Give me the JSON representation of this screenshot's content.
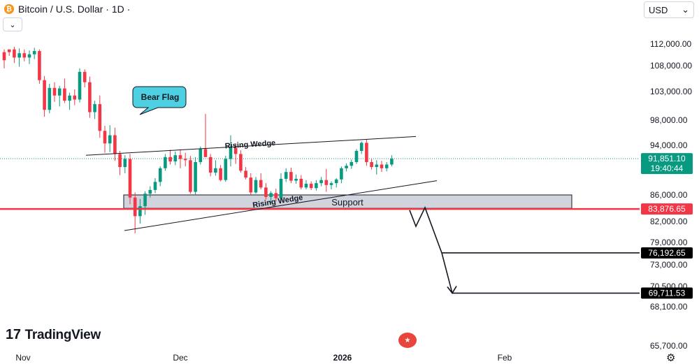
{
  "header": {
    "title": "Bitcoin / U.S. Dollar · 1D ·",
    "coin_symbol": "₿",
    "collapse_glyph": "⌄"
  },
  "currency_select": {
    "value": "USD",
    "chevron": "⌄"
  },
  "branding": {
    "logo_mark": "17",
    "logo_text": "TradingView"
  },
  "colors": {
    "up": "#089981",
    "down": "#f23645",
    "support_line": "#f23645",
    "support_zone": "#d1d4dc",
    "callout": "#4dd0e1",
    "live_badge": "#089981",
    "target_badge": "#000000"
  },
  "chart_data": {
    "type": "candlestick",
    "y_axis": {
      "ticks": [
        "112,000.00",
        "108,000.00",
        "103,000.00",
        "98,000.00",
        "94,000.00",
        "86,000.00",
        "82,000.00",
        "79,000.00",
        "73,000.00",
        "70,500.00",
        "68,100.00",
        "65,700.00"
      ],
      "tick_values": [
        112000,
        108000,
        103000,
        98000,
        94000,
        86000,
        82000,
        79000,
        73000,
        70500,
        68100,
        65700
      ]
    },
    "x_axis": {
      "labels": [
        "Nov",
        "Dec",
        "2026",
        "Feb"
      ]
    },
    "current_price": {
      "value": "91,851.10",
      "countdown": "19:40:44"
    },
    "price_labels": [
      {
        "name": "support",
        "text": "83,876.65",
        "value": 83876.65
      },
      {
        "name": "target-1",
        "text": "76,192.65",
        "value": 76192.65
      },
      {
        "name": "target-2",
        "text": "69,711.53",
        "value": 69711.53
      }
    ],
    "annotations": {
      "bear_flag": "Bear Flag",
      "rising_wedge_upper": "Rising Wedge",
      "rising_wedge_lower": "Rising Wedge",
      "support": "Support"
    },
    "candles": [
      [
        115000,
        116500,
        113000,
        113500
      ],
      [
        113500,
        114200,
        110500,
        111000
      ],
      [
        111000,
        112500,
        108500,
        109500
      ],
      [
        109500,
        111200,
        107800,
        110300
      ],
      [
        110300,
        111000,
        108800,
        109500
      ],
      [
        109500,
        110800,
        108300,
        110100
      ],
      [
        110100,
        111300,
        109200,
        110700
      ],
      [
        110700,
        111000,
        104500,
        105200
      ],
      [
        105200,
        106000,
        98600,
        99800
      ],
      [
        99800,
        104500,
        99200,
        103700
      ],
      [
        103700,
        104800,
        101200,
        102300
      ],
      [
        102300,
        104100,
        100400,
        103600
      ],
      [
        103600,
        105500,
        101000,
        101400
      ],
      [
        101400,
        102800,
        99800,
        102300
      ],
      [
        102300,
        103400,
        100600,
        101600
      ],
      [
        101600,
        107500,
        101100,
        106800
      ],
      [
        106800,
        107300,
        103800,
        104800
      ],
      [
        104800,
        105900,
        98400,
        99400
      ],
      [
        99400,
        101400,
        98200,
        100800
      ],
      [
        100800,
        102300,
        95200,
        96300
      ],
      [
        96300,
        97100,
        92800,
        94300
      ],
      [
        94300,
        97200,
        92900,
        95600
      ],
      [
        95600,
        96800,
        91500,
        92600
      ],
      [
        92600,
        93100,
        89200,
        90500
      ],
      [
        90500,
        92400,
        89500,
        91800
      ],
      [
        91800,
        92600,
        84600,
        85600
      ],
      [
        85600,
        86400,
        80300,
        82800
      ],
      [
        82800,
        85400,
        81700,
        84300
      ],
      [
        84300,
        86600,
        83000,
        86200
      ],
      [
        86200,
        87400,
        85600,
        86800
      ],
      [
        86800,
        88700,
        86300,
        88100
      ],
      [
        88100,
        90600,
        87400,
        90300
      ],
      [
        90300,
        92600,
        89900,
        92100
      ],
      [
        92100,
        93300,
        90900,
        91400
      ],
      [
        91400,
        93000,
        90800,
        92400
      ],
      [
        92400,
        93300,
        90300,
        91800
      ],
      [
        91800,
        92800,
        90600,
        91600
      ],
      [
        91600,
        92300,
        86200,
        86500
      ],
      [
        86500,
        92100,
        86100,
        91300
      ],
      [
        91300,
        93800,
        90900,
        93400
      ],
      [
        93400,
        99100,
        92300,
        92100
      ],
      [
        92100,
        92600,
        89000,
        89600
      ],
      [
        89600,
        91600,
        89100,
        90300
      ],
      [
        90300,
        90800,
        88200,
        88400
      ],
      [
        88400,
        92300,
        88100,
        91800
      ],
      [
        91800,
        95600,
        90600,
        93600
      ],
      [
        93600,
        94300,
        91000,
        92600
      ],
      [
        92600,
        93200,
        89600,
        89900
      ],
      [
        89900,
        90500,
        88500,
        88800
      ],
      [
        88800,
        89500,
        85900,
        86400
      ],
      [
        86400,
        88900,
        86200,
        88400
      ],
      [
        88400,
        89500,
        86900,
        87200
      ],
      [
        87200,
        87900,
        85300,
        85700
      ],
      [
        85700,
        86600,
        84800,
        86300
      ],
      [
        86300,
        87000,
        85000,
        85500
      ],
      [
        85500,
        89500,
        85300,
        88600
      ],
      [
        88600,
        90300,
        88100,
        89700
      ],
      [
        89700,
        90400,
        87900,
        88300
      ],
      [
        88300,
        89300,
        87800,
        88600
      ],
      [
        88600,
        89200,
        86900,
        87200
      ],
      [
        87200,
        88400,
        86900,
        87800
      ],
      [
        87800,
        88200,
        86800,
        87100
      ],
      [
        87100,
        88400,
        86700,
        87900
      ],
      [
        87900,
        88900,
        87400,
        88400
      ],
      [
        88400,
        90200,
        86500,
        87600
      ],
      [
        87600,
        88200,
        86900,
        87900
      ],
      [
        87900,
        88700,
        87200,
        88500
      ],
      [
        88500,
        90600,
        87900,
        90300
      ],
      [
        90300,
        91100,
        89800,
        90700
      ],
      [
        90700,
        91700,
        90200,
        91300
      ],
      [
        91300,
        93400,
        91000,
        93100
      ],
      [
        93100,
        94600,
        92600,
        94400
      ],
      [
        94400,
        94900,
        90700,
        91300
      ],
      [
        91300,
        91800,
        90100,
        90500
      ],
      [
        90500,
        91600,
        89300,
        90900
      ],
      [
        90900,
        91500,
        89700,
        90300
      ],
      [
        90300,
        91300,
        89800,
        90900
      ],
      [
        90900,
        92400,
        90600,
        91851
      ]
    ]
  }
}
